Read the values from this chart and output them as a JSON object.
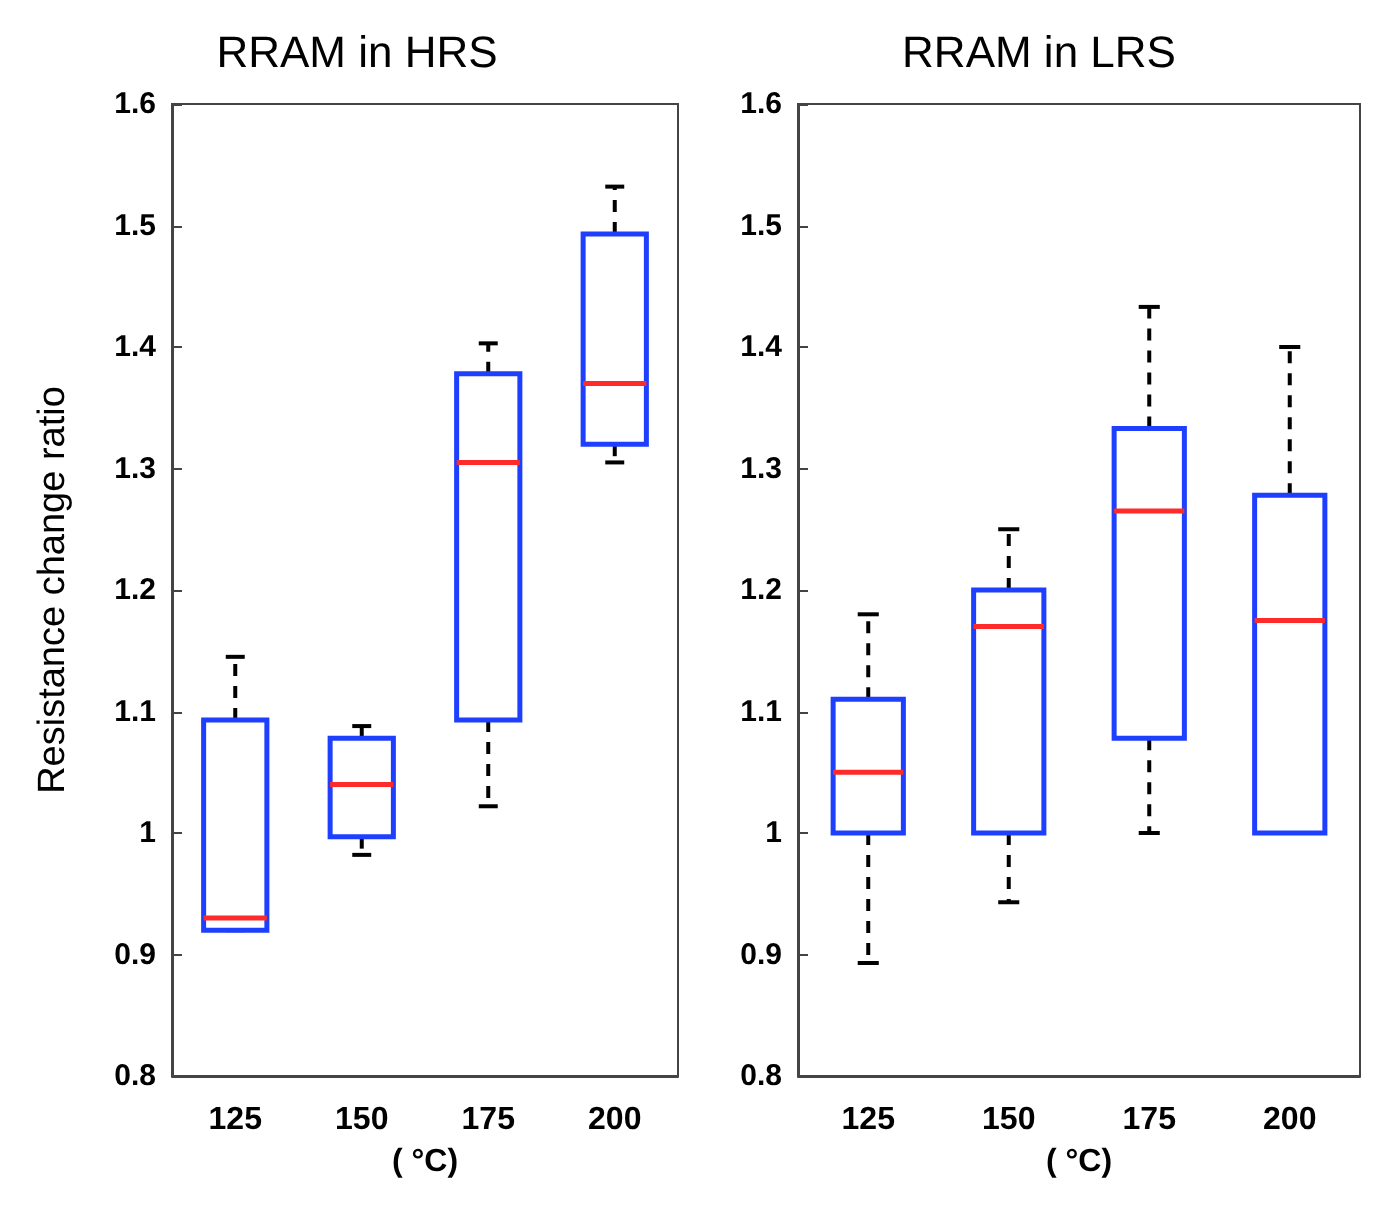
{
  "chart_data": [
    {
      "type": "box",
      "title": "RRAM in HRS",
      "xlabel": "( °C)",
      "ylabel": "Resistance change ratio",
      "categories": [
        "125",
        "150",
        "175",
        "200"
      ],
      "ylim": [
        0.8,
        1.6
      ],
      "yticks": [
        0.8,
        0.9,
        1,
        1.1,
        1.2,
        1.3,
        1.4,
        1.5,
        1.6
      ],
      "series": [
        {
          "color": "#1f3fff",
          "boxes": [
            {
              "low": 0.92,
              "q1": 0.92,
              "median": 0.93,
              "q3": 1.093,
              "high": 1.145
            },
            {
              "low": 0.982,
              "q1": 0.997,
              "median": 1.04,
              "q3": 1.078,
              "high": 1.088
            },
            {
              "low": 1.022,
              "q1": 1.093,
              "median": 1.305,
              "q3": 1.378,
              "high": 1.403
            },
            {
              "low": 1.305,
              "q1": 1.32,
              "median": 1.37,
              "q3": 1.493,
              "high": 1.532
            }
          ]
        }
      ]
    },
    {
      "type": "box",
      "title": "RRAM in LRS",
      "xlabel": "( °C)",
      "categories": [
        "125",
        "150",
        "175",
        "200"
      ],
      "ylim": [
        0.8,
        1.6
      ],
      "yticks": [
        0.8,
        0.9,
        1,
        1.1,
        1.2,
        1.3,
        1.4,
        1.5,
        1.6
      ],
      "series": [
        {
          "color": "#1f3fff",
          "boxes": [
            {
              "low": 0.893,
              "q1": 1.0,
              "median": 1.05,
              "q3": 1.11,
              "high": 1.18
            },
            {
              "low": 0.943,
              "q1": 1.0,
              "median": 1.17,
              "q3": 1.2,
              "high": 1.25
            },
            {
              "low": 1.0,
              "q1": 1.078,
              "median": 1.265,
              "q3": 1.333,
              "high": 1.433
            },
            {
              "low": 1.0,
              "q1": 1.0,
              "median": 1.175,
              "q3": 1.278,
              "high": 1.4
            }
          ]
        }
      ]
    }
  ]
}
